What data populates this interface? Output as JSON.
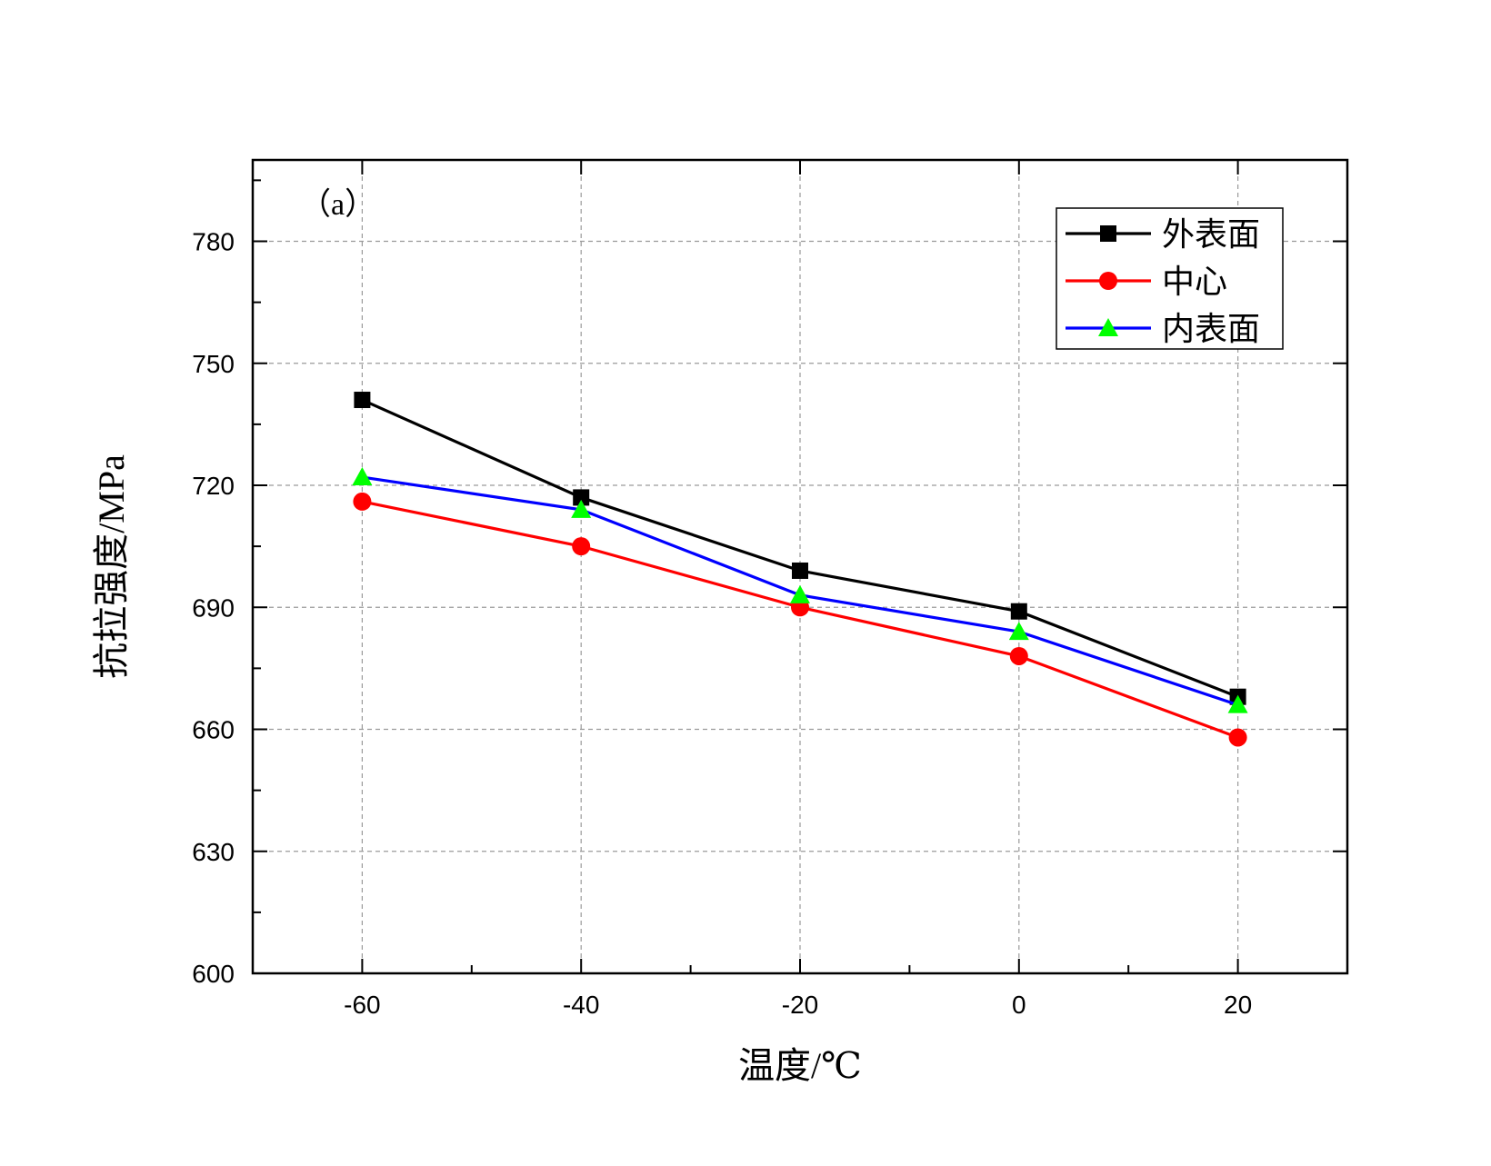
{
  "chart_data": {
    "type": "line",
    "annotation": "（a）",
    "xlabel": "温度/℃",
    "ylabel": "抗拉强度/MPa",
    "xlim": [
      -70,
      30
    ],
    "ylim": [
      600,
      800
    ],
    "x_ticks": [
      -60,
      -40,
      -20,
      0,
      20
    ],
    "y_ticks": [
      600,
      630,
      660,
      690,
      720,
      750,
      780
    ],
    "x_tick_labels": [
      "-60",
      "-40",
      "-20",
      "0",
      "20"
    ],
    "y_tick_labels": [
      "600",
      "630",
      "660",
      "690",
      "720",
      "750",
      "780"
    ],
    "grid": true,
    "legend_position": "top-right",
    "x": [
      -60,
      -40,
      -20,
      0,
      20
    ],
    "series": [
      {
        "name": "外表面",
        "color": "#000000",
        "marker": "square",
        "values": [
          741,
          717,
          699,
          689,
          668
        ]
      },
      {
        "name": "中心",
        "color": "#ff0000",
        "marker": "circle",
        "values": [
          716,
          705,
          690,
          678,
          658
        ]
      },
      {
        "name": "内表面",
        "color": "#0000ff",
        "marker_color": "#00ff00",
        "marker": "triangle",
        "values": [
          722,
          714,
          693,
          684,
          666
        ]
      }
    ]
  }
}
